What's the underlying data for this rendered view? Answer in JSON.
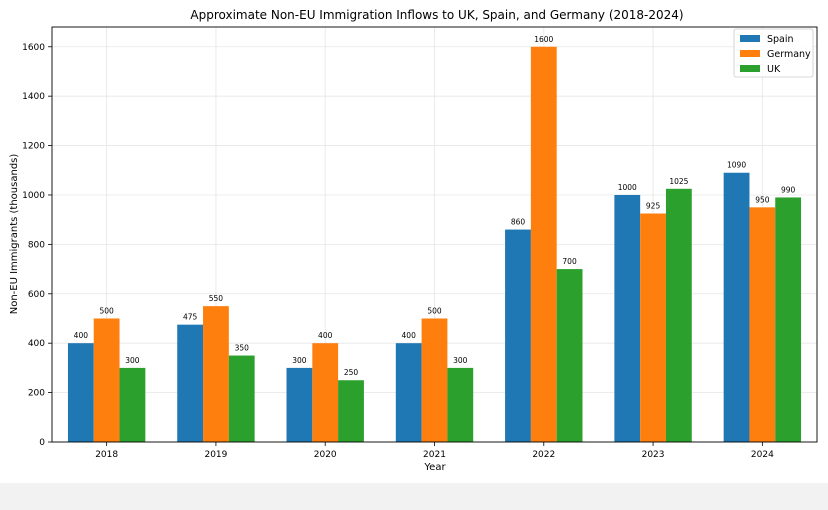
{
  "chart_data": {
    "type": "bar",
    "title": "Approximate Non-EU Immigration Inflows to UK, Spain, and Germany (2018-2024)",
    "xlabel": "Year",
    "ylabel": "Non-EU Immigrants (thousands)",
    "categories": [
      "2018",
      "2019",
      "2020",
      "2021",
      "2022",
      "2023",
      "2024"
    ],
    "series": [
      {
        "name": "Spain",
        "color": "#1f77b4",
        "values": [
          400,
          475,
          300,
          400,
          860,
          1000,
          1090
        ]
      },
      {
        "name": "Germany",
        "color": "#ff7f0e",
        "values": [
          500,
          550,
          400,
          500,
          1600,
          925,
          950
        ]
      },
      {
        "name": "UK",
        "color": "#2ca02c",
        "values": [
          300,
          350,
          250,
          300,
          700,
          1025,
          990
        ]
      }
    ],
    "ylim": [
      0,
      1680
    ],
    "yticks": [
      0,
      200,
      400,
      600,
      800,
      1000,
      1200,
      1400,
      1600
    ],
    "grid": true,
    "legend_position": "top-right",
    "data_labels": true
  }
}
